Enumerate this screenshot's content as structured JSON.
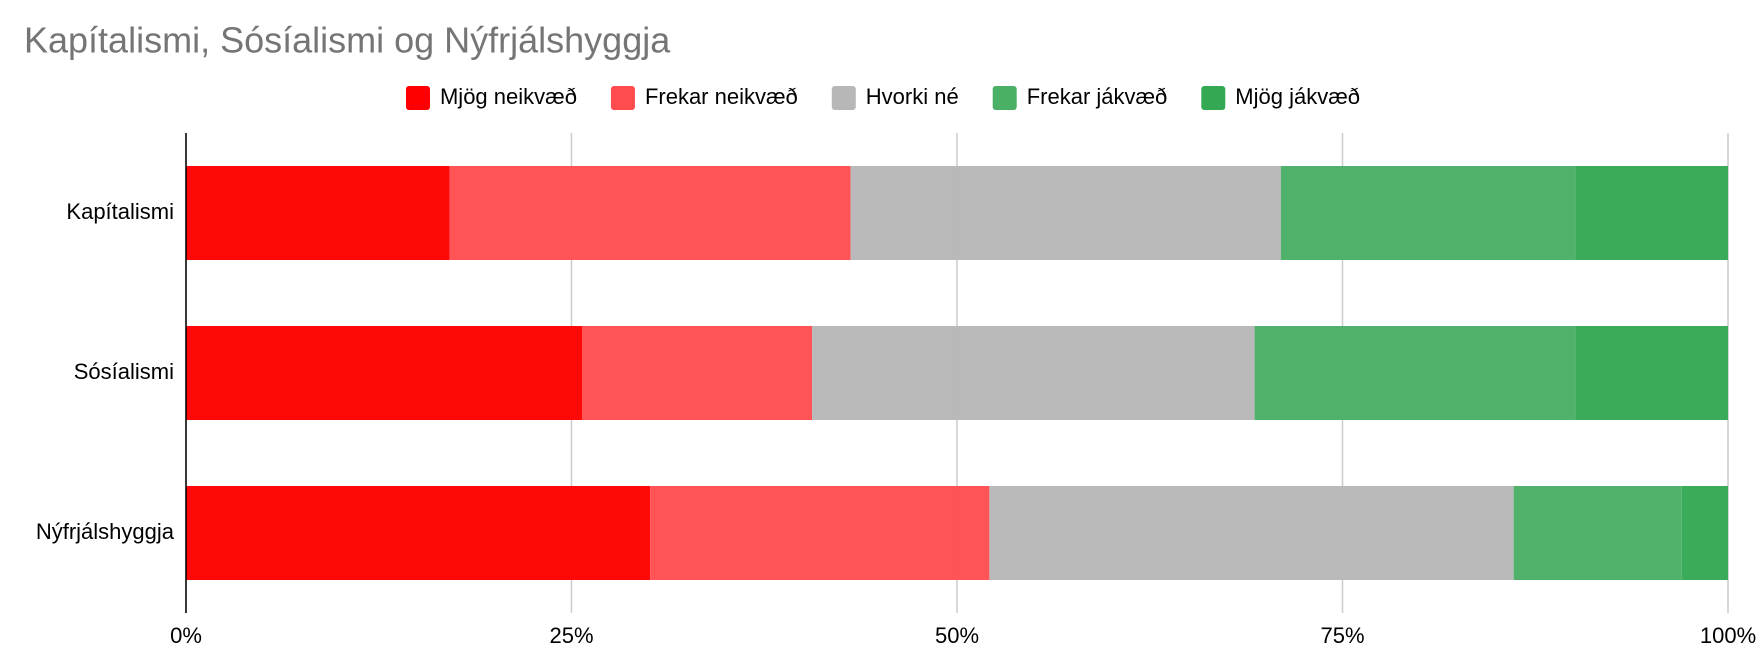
{
  "chart_data": {
    "type": "stacked_bar_horizontal",
    "title": "Kapítalismi, Sósíalismi og Nýfrjálshyggja",
    "categories": [
      "Kapítalismi",
      "Sósíalismi",
      "Nýfrjálshyggja"
    ],
    "series": [
      {
        "name": "Mjög neikvæð",
        "color": "#ff0000",
        "values": [
          17.1,
          25.7,
          30.1
        ]
      },
      {
        "name": "Frekar neikvæð",
        "color": "#ff4d4f",
        "values": [
          26.0,
          14.9,
          22.0
        ]
      },
      {
        "name": "Hvorki né",
        "color": "#b7b7b7",
        "values": [
          27.9,
          28.7,
          34.0
        ]
      },
      {
        "name": "Frekar jákvæð",
        "color": "#4ab065",
        "values": [
          19.1,
          20.8,
          10.9
        ]
      },
      {
        "name": "Mjög jákvæð",
        "color": "#34a853",
        "values": [
          9.9,
          9.9,
          3.0
        ]
      }
    ],
    "xlim": [
      0,
      100
    ],
    "xticks": [
      {
        "value": 0,
        "label": "0%"
      },
      {
        "value": 25,
        "label": "25%"
      },
      {
        "value": 50,
        "label": "50%"
      },
      {
        "value": 75,
        "label": "75%"
      },
      {
        "value": 100,
        "label": "100%"
      }
    ],
    "grid": true,
    "legend": "top"
  }
}
